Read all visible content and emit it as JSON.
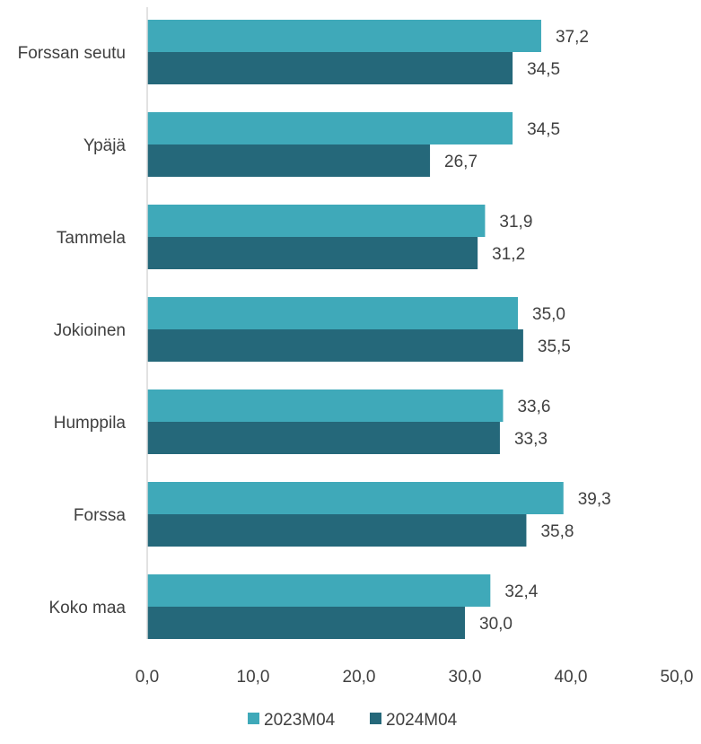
{
  "chart_data": {
    "type": "bar",
    "orientation": "horizontal",
    "categories": [
      "Forssan seutu",
      "Ypäjä",
      "Tammela",
      "Jokioinen",
      "Humppila",
      "Forssa",
      "Koko maa"
    ],
    "series": [
      {
        "name": "2023M04",
        "color": "#3fa9b9",
        "values": [
          37.2,
          34.5,
          31.9,
          35.0,
          33.6,
          39.3,
          32.4
        ],
        "labels": [
          "37,2",
          "34,5",
          "31,9",
          "35,0",
          "33,6",
          "39,3",
          "32,4"
        ]
      },
      {
        "name": "2024M04",
        "color": "#25687a",
        "values": [
          34.5,
          26.7,
          31.2,
          35.5,
          33.3,
          35.8,
          30.0
        ],
        "labels": [
          "34,5",
          "26,7",
          "31,2",
          "35,5",
          "33,3",
          "35,8",
          "30,0"
        ]
      }
    ],
    "xlim": [
      0,
      50
    ],
    "xticks": [
      "0,0",
      "10,0",
      "20,0",
      "30,0",
      "40,0",
      "50,0"
    ],
    "grid": false,
    "legend_position": "bottom"
  }
}
